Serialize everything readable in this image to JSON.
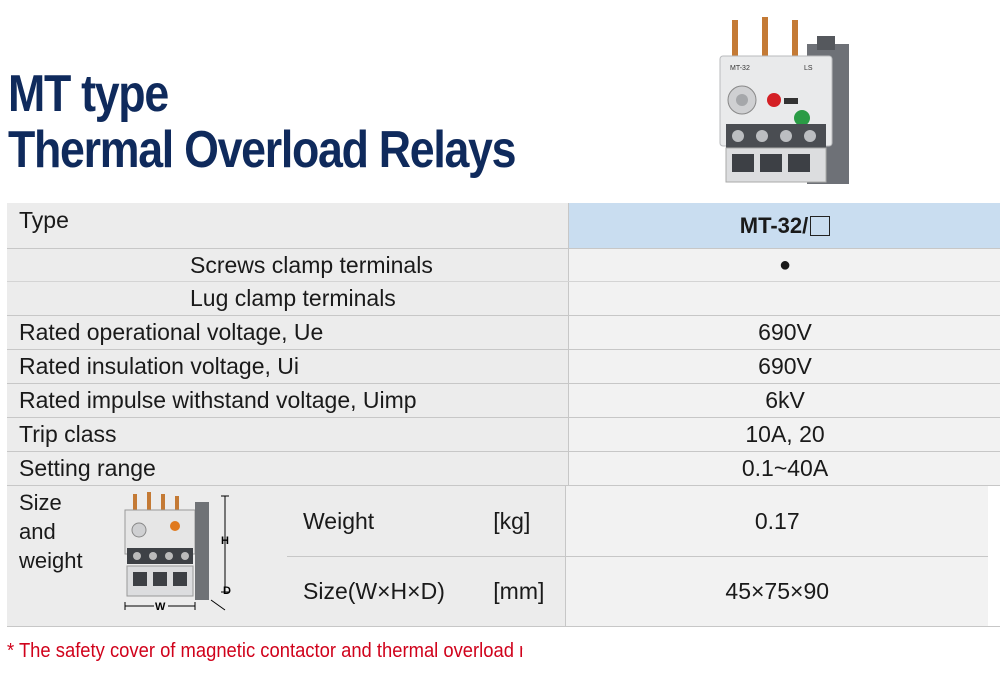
{
  "title": {
    "line1": "MT type",
    "line2": "Thermal Overload Relays"
  },
  "table": {
    "type_label": "Type",
    "type_value": "MT-32/",
    "screws_label": "Screws clamp terminals",
    "screws_value": "●",
    "lug_label": "Lug clamp terminals",
    "lug_value": "",
    "rows": [
      {
        "label": "Rated operational voltage, Ue",
        "value": "690V"
      },
      {
        "label": "Rated insulation voltage, Ui",
        "value": "690V"
      },
      {
        "label": "Rated impulse withstand voltage, Uimp",
        "value": "6kV"
      },
      {
        "label": "Trip class",
        "value": "10A, 20"
      },
      {
        "label": "Setting range",
        "value": "0.1~40A"
      }
    ],
    "size_weight": {
      "label_line1": "Size",
      "label_line2": "and",
      "label_line3": "weight",
      "weight_label": "Weight",
      "weight_unit": "[kg]",
      "weight_value": "0.17",
      "size_label": "Size(W×H×D)",
      "size_unit": "[mm]",
      "size_value": "45×75×90",
      "dim_h": "H",
      "dim_w": "W",
      "dim_d": "D"
    }
  },
  "device_text": {
    "model": "MT-32",
    "brand": "LS"
  },
  "footnote": "* The safety cover of magnetic contactor and thermal overload r",
  "colors": {
    "title": "#0f2a5c",
    "header": "#c9ddf0",
    "footnote": "#d0021b"
  }
}
